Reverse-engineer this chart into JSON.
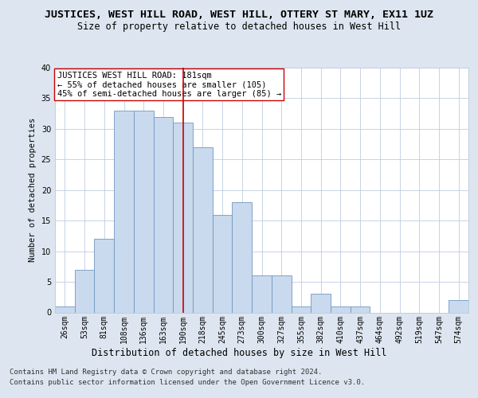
{
  "title": "JUSTICES, WEST HILL ROAD, WEST HILL, OTTERY ST MARY, EX11 1UZ",
  "subtitle": "Size of property relative to detached houses in West Hill",
  "xlabel": "Distribution of detached houses by size in West Hill",
  "ylabel": "Number of detached properties",
  "bar_color": "#c9d9ee",
  "bar_edge_color": "#7098c0",
  "background_color": "#dde6f0",
  "plot_bg_color": "#ffffff",
  "grid_color": "#c0cce0",
  "categories": [
    "26sqm",
    "53sqm",
    "81sqm",
    "108sqm",
    "136sqm",
    "163sqm",
    "190sqm",
    "218sqm",
    "245sqm",
    "273sqm",
    "300sqm",
    "327sqm",
    "355sqm",
    "382sqm",
    "410sqm",
    "437sqm",
    "464sqm",
    "492sqm",
    "519sqm",
    "547sqm",
    "574sqm"
  ],
  "values": [
    1,
    7,
    12,
    33,
    33,
    32,
    31,
    27,
    16,
    18,
    6,
    6,
    1,
    3,
    1,
    1,
    0,
    0,
    0,
    0,
    2
  ],
  "ylim": [
    0,
    40
  ],
  "yticks": [
    0,
    5,
    10,
    15,
    20,
    25,
    30,
    35,
    40
  ],
  "property_line_x": 6.0,
  "property_line_color": "#cc0000",
  "annotation_text": "JUSTICES WEST HILL ROAD: 181sqm\n← 55% of detached houses are smaller (105)\n45% of semi-detached houses are larger (85) →",
  "annotation_box_color": "#ffffff",
  "annotation_box_edge": "#cc0000",
  "footnote_line1": "Contains HM Land Registry data © Crown copyright and database right 2024.",
  "footnote_line2": "Contains public sector information licensed under the Open Government Licence v3.0.",
  "title_fontsize": 9.5,
  "subtitle_fontsize": 8.5,
  "xlabel_fontsize": 8.5,
  "ylabel_fontsize": 7.5,
  "tick_fontsize": 7,
  "annotation_fontsize": 7.5,
  "footnote_fontsize": 6.5
}
